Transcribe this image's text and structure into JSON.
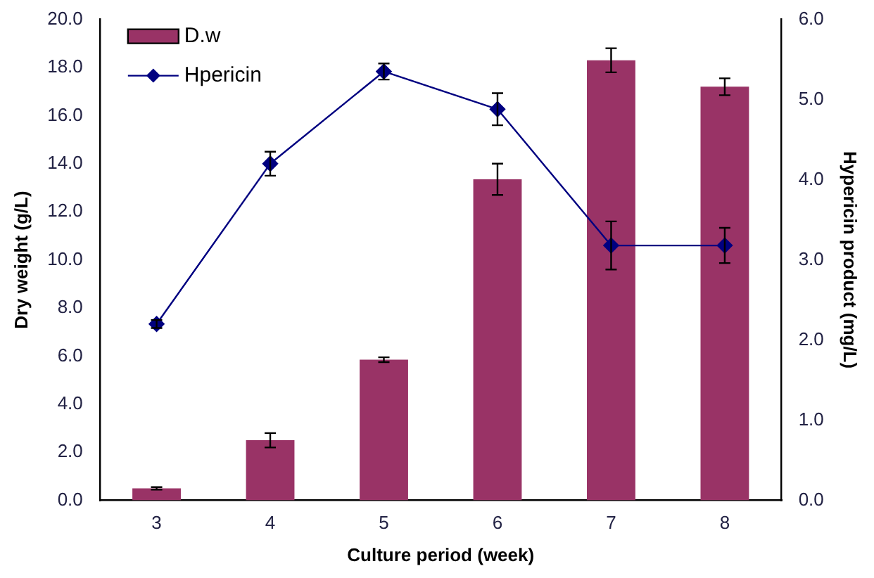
{
  "chart_data": {
    "type": "bar",
    "xlabel": "Culture period (week)",
    "ylabel": "Dry weight (g/L)",
    "y2label": "Hypericin product (mg/L)",
    "categories": [
      "3",
      "4",
      "5",
      "6",
      "7",
      "8"
    ],
    "series": [
      {
        "name": "D.w",
        "color": "#993366",
        "values": [
          0.5,
          2.5,
          5.85,
          13.35,
          18.3,
          17.2
        ],
        "errors": [
          0.05,
          0.3,
          0.1,
          0.65,
          0.5,
          0.35
        ]
      },
      {
        "name": "Hpericin",
        "type": "line",
        "axis": "y2",
        "color": "#000080",
        "values": [
          2.2,
          4.2,
          5.35,
          4.88,
          3.18,
          3.18
        ],
        "errors": [
          0.05,
          0.15,
          0.1,
          0.2,
          0.3,
          0.22
        ]
      }
    ],
    "ylim": [
      0,
      20
    ],
    "yticks": [
      {
        "value": 0,
        "label": "0.0"
      },
      {
        "value": 2,
        "label": "2.0"
      },
      {
        "value": 4,
        "label": "4.0"
      },
      {
        "value": 6,
        "label": "6.0"
      },
      {
        "value": 8,
        "label": "8.0"
      },
      {
        "value": 10,
        "label": "10.0"
      },
      {
        "value": 12,
        "label": "12.0"
      },
      {
        "value": 14,
        "label": "14.0"
      },
      {
        "value": 16,
        "label": "16.0"
      },
      {
        "value": 18,
        "label": "18.0"
      },
      {
        "value": 20,
        "label": "20.0"
      }
    ],
    "y2lim": [
      0,
      6
    ],
    "y2ticks": [
      {
        "value": 0,
        "label": "0.0"
      },
      {
        "value": 1,
        "label": "1.0"
      },
      {
        "value": 2,
        "label": "2.0"
      },
      {
        "value": 3,
        "label": "3.0"
      },
      {
        "value": 4,
        "label": "4.0"
      },
      {
        "value": 5,
        "label": "5.0"
      },
      {
        "value": 6,
        "label": "6.0"
      }
    ],
    "marker": "diamond",
    "legend": "top left",
    "grid": false
  }
}
